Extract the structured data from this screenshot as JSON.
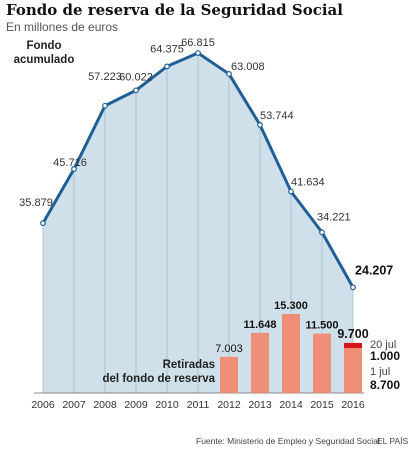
{
  "header": {
    "title": "Fondo de reserva de la Seguridad Social",
    "subtitle": "En millones de euros"
  },
  "footer": {
    "source": "Fuente: Ministerio de Empleo y Seguridad Social.",
    "brand": "EL PAÍS"
  },
  "colors": {
    "line": "#1f5f95",
    "area": "#cfe0ea",
    "bar": "#ef8f78",
    "bar_highlight": "#d7141a"
  },
  "chart_data": [
    {
      "type": "area",
      "series_label": "Fondo acumulado",
      "x": [
        "2006",
        "2007",
        "2008",
        "2009",
        "2010",
        "2011",
        "2012",
        "2013",
        "2014",
        "2015",
        "2016"
      ],
      "values": [
        35879,
        45716,
        57223,
        60022,
        64375,
        66815,
        63008,
        53744,
        41634,
        34221,
        24207
      ],
      "value_labels": [
        "35.879",
        "45.716",
        "57.223",
        "60.022",
        "64.375",
        "66.815",
        "63.008",
        "53.744",
        "41.634",
        "34.221",
        "24.207"
      ]
    },
    {
      "type": "bar",
      "series_label": "Retiradas del fondo de reserva",
      "categories": [
        "2012",
        "2013",
        "2014",
        "2015",
        "2016"
      ],
      "values": [
        7003,
        11648,
        15300,
        11500,
        9700
      ],
      "value_labels": [
        "7.003",
        "11.648",
        "15.300",
        "11.500",
        "9.700"
      ],
      "breakdown_2016": [
        {
          "label": "1 jul",
          "value": 8700,
          "value_label": "8.700"
        },
        {
          "label": "20 jul",
          "value": 1000,
          "value_label": "1.000"
        }
      ]
    }
  ]
}
